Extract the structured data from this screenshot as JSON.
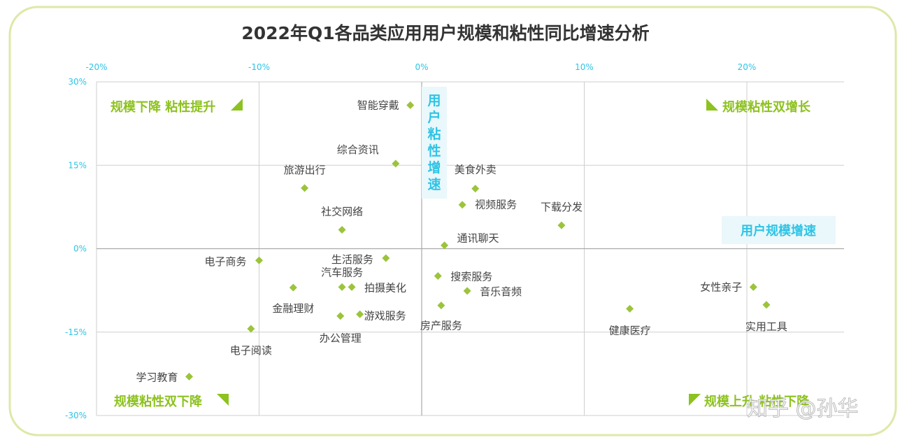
{
  "chart_data": {
    "type": "scatter",
    "title": "2022年Q1各品类应用用户规模和粘性同比增速分析",
    "x_tick_labels": [
      "-20%",
      "-10%",
      "0%",
      "10%",
      "20%"
    ],
    "x_ticks": [
      -20,
      -10,
      0,
      10,
      20
    ],
    "y_tick_labels": [
      "30%",
      "15%",
      "0%",
      "-15%",
      "-30%"
    ],
    "y_ticks": [
      30,
      15,
      0,
      -15,
      -30
    ],
    "xlim": [
      -20,
      26
    ],
    "ylim": [
      -30,
      30
    ],
    "x_axis_label": "用户规模增速",
    "y_axis_label": "用户粘性增速",
    "quadrants": {
      "top_left": "规模下降 粘性提升",
      "top_right": "规模粘性双增长",
      "bottom_left": "规模粘性双下降",
      "bottom_right": "规模上升 粘性下降"
    },
    "watermark": "知乎 @孙华",
    "colors": {
      "marker": "#9bc43b",
      "quadrant_text": "#8dc21f",
      "axis_text": "#2ec4e6",
      "frame": "#dde9a8",
      "grid": "#cfcfcf"
    },
    "points": [
      {
        "label": "智能穿戴",
        "x": -0.7,
        "y": 25.8
      },
      {
        "label": "综合资讯",
        "x": -1.6,
        "y": 15.3
      },
      {
        "label": "旅游出行",
        "x": -7.2,
        "y": 10.9
      },
      {
        "label": "美食外卖",
        "x": 3.3,
        "y": 10.8
      },
      {
        "label": "视频服务",
        "x": 2.5,
        "y": 7.9
      },
      {
        "label": "下载分发",
        "x": 8.6,
        "y": 4.2
      },
      {
        "label": "社交网络",
        "x": -4.9,
        "y": 3.4
      },
      {
        "label": "通讯聊天",
        "x": 1.4,
        "y": 0.6
      },
      {
        "label": "电子商务",
        "x": -10.0,
        "y": -2.1
      },
      {
        "label": "生活服务",
        "x": -2.2,
        "y": -1.7
      },
      {
        "label": "汽车服务",
        "x": -4.9,
        "y": -6.9
      },
      {
        "label": "拍摄美化",
        "x": -4.3,
        "y": -6.9
      },
      {
        "label": "搜索服务",
        "x": 1.0,
        "y": -4.9
      },
      {
        "label": "音乐音频",
        "x": 2.8,
        "y": -7.6
      },
      {
        "label": "金融理财",
        "x": -7.9,
        "y": -7.0
      },
      {
        "label": "房产服务",
        "x": 1.2,
        "y": -10.2
      },
      {
        "label": "游戏服务",
        "x": -3.8,
        "y": -11.8
      },
      {
        "label": "办公管理",
        "x": -5.0,
        "y": -12.1
      },
      {
        "label": "健康医疗",
        "x": 12.8,
        "y": -10.8
      },
      {
        "label": "女性亲子",
        "x": 20.4,
        "y": -6.9
      },
      {
        "label": "实用工具",
        "x": 21.2,
        "y": -10.1
      },
      {
        "label": "电子阅读",
        "x": -10.5,
        "y": -14.4
      },
      {
        "label": "学习教育",
        "x": -14.3,
        "y": -23.0
      }
    ]
  }
}
